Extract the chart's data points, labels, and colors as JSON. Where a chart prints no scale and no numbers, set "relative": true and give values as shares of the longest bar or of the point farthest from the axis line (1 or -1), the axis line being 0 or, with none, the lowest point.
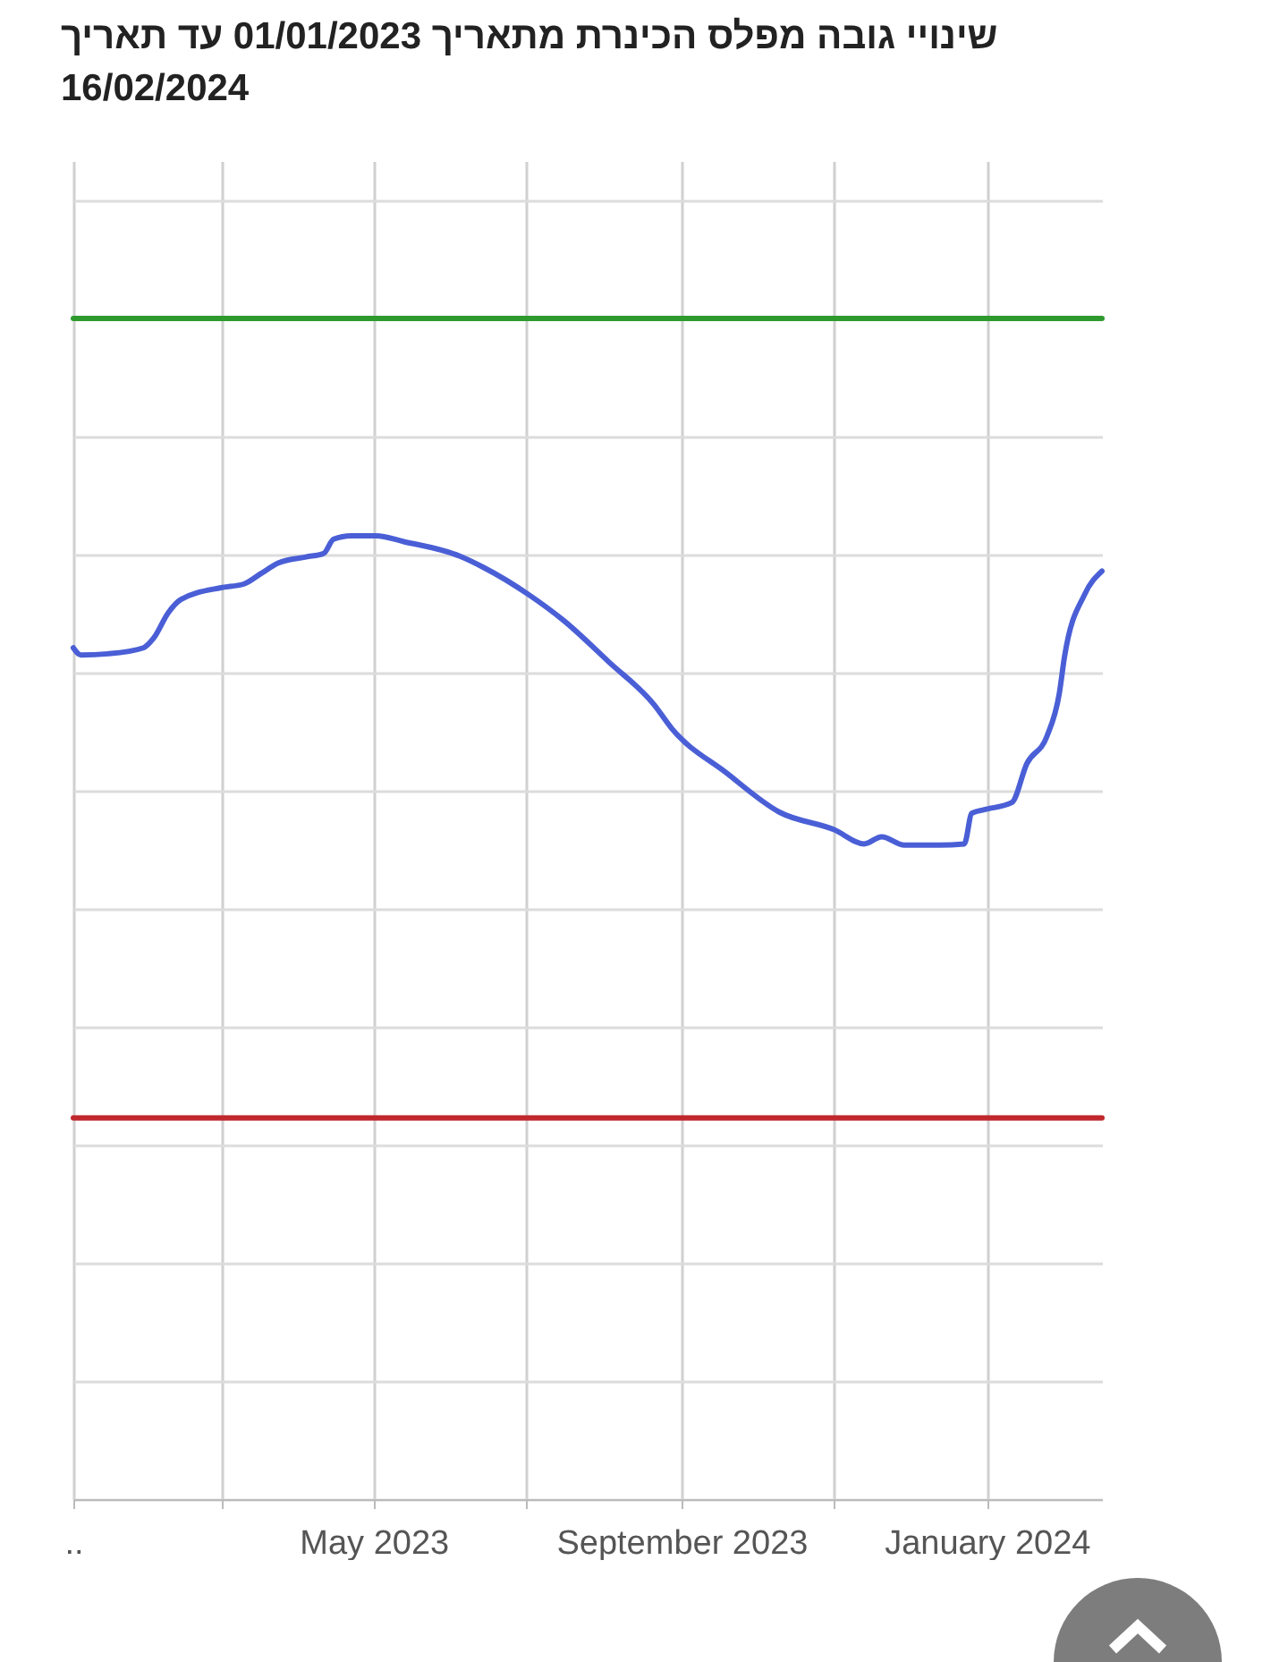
{
  "chart_data": {
    "type": "line",
    "title": "שינויי גובה מפלס הכינרת מתאריך 01/01/2023 עד תאריך 16/02/2024",
    "relative": true,
    "grid": true,
    "xlim": [
      "2023-01-01",
      "2024-02-16"
    ],
    "xticks": [
      {
        "value": "2023-01-01",
        "label": ".."
      },
      {
        "value": "2023-03-01",
        "label": null
      },
      {
        "value": "2023-05-01",
        "label": "May 2023"
      },
      {
        "value": "2023-07-01",
        "label": null
      },
      {
        "value": "2023-09-01",
        "label": "September 2023"
      },
      {
        "value": "2023-11-01",
        "label": null
      },
      {
        "value": "2024-01-01",
        "label": "January 2024"
      }
    ],
    "series": [
      {
        "type": "line",
        "color": "#2e9a2e",
        "x": [
          "2023-01-01",
          "2024-02-16"
        ],
        "values": [
          1,
          1
        ]
      },
      {
        "type": "line",
        "color": "#c0282d",
        "x": [
          "2023-01-01",
          "2024-02-16"
        ],
        "values": [
          0.323,
          0.323
        ]
      },
      {
        "type": "line",
        "color": "#4a5fd6",
        "x": [
          "2023-01-01",
          "2023-01-04",
          "2023-01-15",
          "2023-01-29",
          "2023-02-02",
          "2023-02-08",
          "2023-02-13",
          "2023-03-01",
          "2023-03-10",
          "2023-03-17",
          "2023-03-24",
          "2023-04-04",
          "2023-04-11",
          "2023-04-15",
          "2023-04-22",
          "2023-05-02",
          "2023-05-13",
          "2023-06-04",
          "2023-06-14",
          "2023-07-02",
          "2023-07-16",
          "2023-08-03",
          "2023-08-21",
          "2023-08-28",
          "2023-09-19",
          "2023-10-10",
          "2023-11-01",
          "2023-11-13",
          "2023-11-20",
          "2023-11-29",
          "2023-12-13",
          "2023-12-23",
          "2023-12-26",
          "2023-12-31",
          "2024-01-11",
          "2024-01-17",
          "2024-01-25",
          "2024-01-30",
          "2024-02-01",
          "2024-02-09",
          "2024-02-16"
        ],
        "values": [
          0.721,
          0.715,
          0.716,
          0.721,
          0.729,
          0.751,
          0.762,
          0.772,
          0.775,
          0.784,
          0.793,
          0.798,
          0.801,
          0.813,
          0.816,
          0.816,
          0.811,
          0.799,
          0.789,
          0.766,
          0.744,
          0.709,
          0.673,
          0.653,
          0.615,
          0.582,
          0.567,
          0.555,
          0.561,
          0.554,
          0.554,
          0.555,
          0.581,
          0.584,
          0.59,
          0.623,
          0.646,
          0.683,
          0.713,
          0.766,
          0.786
        ]
      }
    ]
  }
}
